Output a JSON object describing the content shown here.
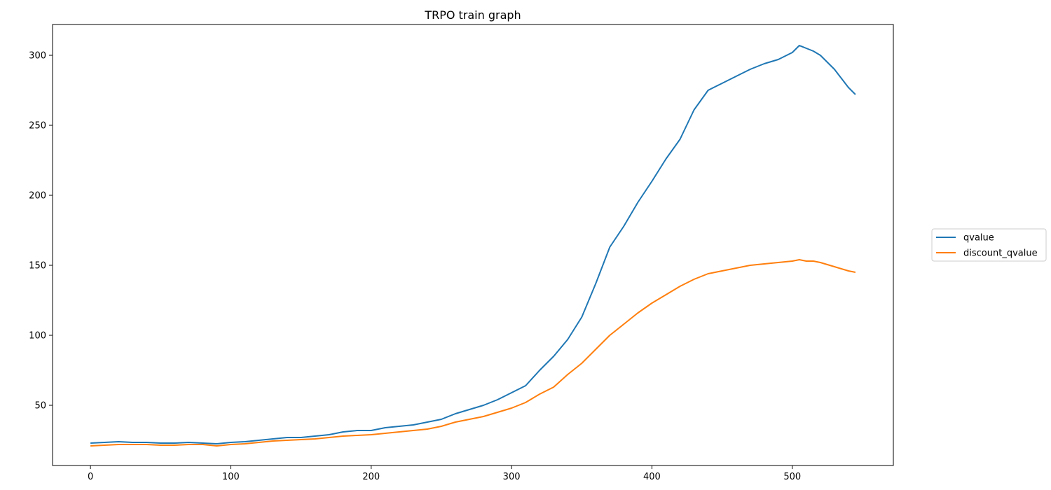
{
  "chart_data": {
    "type": "line",
    "title": "TRPO train graph",
    "xlabel": "",
    "ylabel": "",
    "xlim": [
      -27,
      572
    ],
    "ylim": [
      7,
      322
    ],
    "xticks": [
      0,
      100,
      200,
      300,
      400,
      500
    ],
    "yticks": [
      50,
      100,
      150,
      200,
      250,
      300
    ],
    "grid": false,
    "legend_position": "right",
    "series": [
      {
        "name": "qvalue",
        "color": "#1f77b4",
        "points": [
          [
            0,
            23
          ],
          [
            10,
            23.5
          ],
          [
            20,
            24
          ],
          [
            30,
            23.5
          ],
          [
            40,
            23.5
          ],
          [
            50,
            23
          ],
          [
            60,
            23
          ],
          [
            70,
            23.5
          ],
          [
            80,
            23
          ],
          [
            90,
            22.5
          ],
          [
            100,
            23.5
          ],
          [
            110,
            24
          ],
          [
            120,
            25
          ],
          [
            130,
            26
          ],
          [
            140,
            27
          ],
          [
            150,
            27
          ],
          [
            160,
            28
          ],
          [
            170,
            29
          ],
          [
            180,
            31
          ],
          [
            190,
            32
          ],
          [
            200,
            32
          ],
          [
            210,
            34
          ],
          [
            220,
            35
          ],
          [
            230,
            36
          ],
          [
            240,
            38
          ],
          [
            250,
            40
          ],
          [
            260,
            44
          ],
          [
            270,
            47
          ],
          [
            280,
            50
          ],
          [
            290,
            54
          ],
          [
            300,
            59
          ],
          [
            310,
            64
          ],
          [
            320,
            75
          ],
          [
            330,
            85
          ],
          [
            340,
            97
          ],
          [
            350,
            113
          ],
          [
            360,
            137
          ],
          [
            370,
            163
          ],
          [
            380,
            178
          ],
          [
            390,
            195
          ],
          [
            400,
            210
          ],
          [
            410,
            226
          ],
          [
            420,
            240
          ],
          [
            430,
            261
          ],
          [
            440,
            275
          ],
          [
            450,
            280
          ],
          [
            460,
            285
          ],
          [
            470,
            290
          ],
          [
            480,
            294
          ],
          [
            490,
            297
          ],
          [
            500,
            302
          ],
          [
            505,
            307
          ],
          [
            510,
            305
          ],
          [
            515,
            303
          ],
          [
            520,
            300
          ],
          [
            530,
            290
          ],
          [
            540,
            277
          ],
          [
            545,
            272
          ]
        ]
      },
      {
        "name": "discount_qvalue",
        "color": "#ff7f0e",
        "points": [
          [
            0,
            21
          ],
          [
            10,
            21.5
          ],
          [
            20,
            22
          ],
          [
            30,
            22
          ],
          [
            40,
            22
          ],
          [
            50,
            21.5
          ],
          [
            60,
            21.5
          ],
          [
            70,
            22
          ],
          [
            80,
            22
          ],
          [
            90,
            21
          ],
          [
            100,
            22
          ],
          [
            110,
            22.5
          ],
          [
            120,
            23.5
          ],
          [
            130,
            24.5
          ],
          [
            140,
            25
          ],
          [
            150,
            25.5
          ],
          [
            160,
            26
          ],
          [
            170,
            27
          ],
          [
            180,
            28
          ],
          [
            190,
            28.5
          ],
          [
            200,
            29
          ],
          [
            210,
            30
          ],
          [
            220,
            31
          ],
          [
            230,
            32
          ],
          [
            240,
            33
          ],
          [
            250,
            35
          ],
          [
            260,
            38
          ],
          [
            270,
            40
          ],
          [
            280,
            42
          ],
          [
            290,
            45
          ],
          [
            300,
            48
          ],
          [
            310,
            52
          ],
          [
            320,
            58
          ],
          [
            330,
            63
          ],
          [
            340,
            72
          ],
          [
            350,
            80
          ],
          [
            360,
            90
          ],
          [
            370,
            100
          ],
          [
            380,
            108
          ],
          [
            390,
            116
          ],
          [
            400,
            123
          ],
          [
            410,
            129
          ],
          [
            420,
            135
          ],
          [
            430,
            140
          ],
          [
            440,
            144
          ],
          [
            450,
            146
          ],
          [
            460,
            148
          ],
          [
            470,
            150
          ],
          [
            480,
            151
          ],
          [
            490,
            152
          ],
          [
            500,
            153
          ],
          [
            505,
            154
          ],
          [
            510,
            153
          ],
          [
            515,
            153
          ],
          [
            520,
            152
          ],
          [
            530,
            149
          ],
          [
            540,
            146
          ],
          [
            545,
            145
          ]
        ]
      }
    ]
  }
}
